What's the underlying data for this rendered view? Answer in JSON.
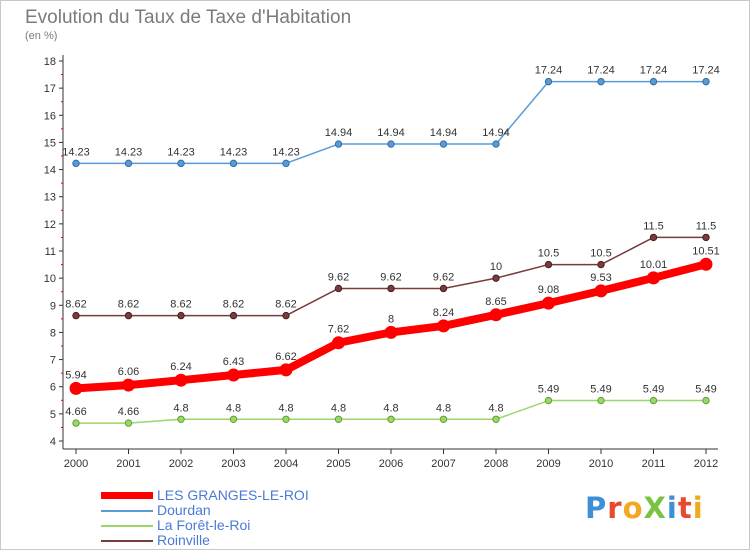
{
  "title": "Evolution du Taux de Taxe d'Habitation",
  "subtitle": "(en %)",
  "logo": "ProXiti",
  "chart_data": {
    "type": "line",
    "title": "Evolution du Taux de Taxe d'Habitation",
    "subtitle": "(en %)",
    "xlabel": "",
    "ylabel": "",
    "categories": [
      "2000",
      "2001",
      "2002",
      "2003",
      "2004",
      "2005",
      "2006",
      "2007",
      "2008",
      "2009",
      "2010",
      "2011",
      "2012"
    ],
    "ylim": [
      4,
      18
    ],
    "yticks": [
      "4",
      "5",
      "6",
      "7",
      "8",
      "9",
      "10",
      "11",
      "12",
      "13",
      "14",
      "15",
      "16",
      "17",
      "18"
    ],
    "grid": false,
    "legend_position": "bottom-left",
    "series": [
      {
        "name": "LES GRANGES-LE-ROI",
        "color": "#ff0000",
        "values": [
          5.94,
          6.06,
          6.24,
          6.43,
          6.62,
          7.62,
          8,
          8.24,
          8.65,
          9.08,
          9.53,
          10.01,
          10.51
        ],
        "labels": [
          "5.94",
          "6.06",
          "6.24",
          "6.43",
          "6.62",
          "7.62",
          "8",
          "8.24",
          "8.65",
          "9.08",
          "9.53",
          "10.01",
          "10.51"
        ]
      },
      {
        "name": "Dourdan",
        "color": "#5a9bd5",
        "values": [
          14.23,
          14.23,
          14.23,
          14.23,
          14.23,
          14.94,
          14.94,
          14.94,
          14.94,
          17.24,
          17.24,
          17.24,
          17.24
        ],
        "labels": [
          "14.23",
          "14.23",
          "14.23",
          "14.23",
          "14.23",
          "14.94",
          "14.94",
          "14.94",
          "14.94",
          "17.24",
          "17.24",
          "17.24",
          "17.24"
        ]
      },
      {
        "name": "La Forêt-le-Roi",
        "color": "#9ad66b",
        "values": [
          4.66,
          4.66,
          4.8,
          4.8,
          4.8,
          4.8,
          4.8,
          4.8,
          4.8,
          5.49,
          5.49,
          5.49,
          5.49
        ],
        "labels": [
          "4.66",
          "4.66",
          "4.8",
          "4.8",
          "4.8",
          "4.8",
          "4.8",
          "4.8",
          "4.8",
          "5.49",
          "5.49",
          "5.49",
          "5.49"
        ]
      },
      {
        "name": "Roinville",
        "color": "#7a3b3b",
        "values": [
          8.62,
          8.62,
          8.62,
          8.62,
          8.62,
          9.62,
          9.62,
          9.62,
          10,
          10.5,
          10.5,
          11.5,
          11.5
        ],
        "labels": [
          "8.62",
          "8.62",
          "8.62",
          "8.62",
          "8.62",
          "9.62",
          "9.62",
          "9.62",
          "10",
          "10.5",
          "10.5",
          "11.5",
          "11.5"
        ]
      }
    ]
  }
}
